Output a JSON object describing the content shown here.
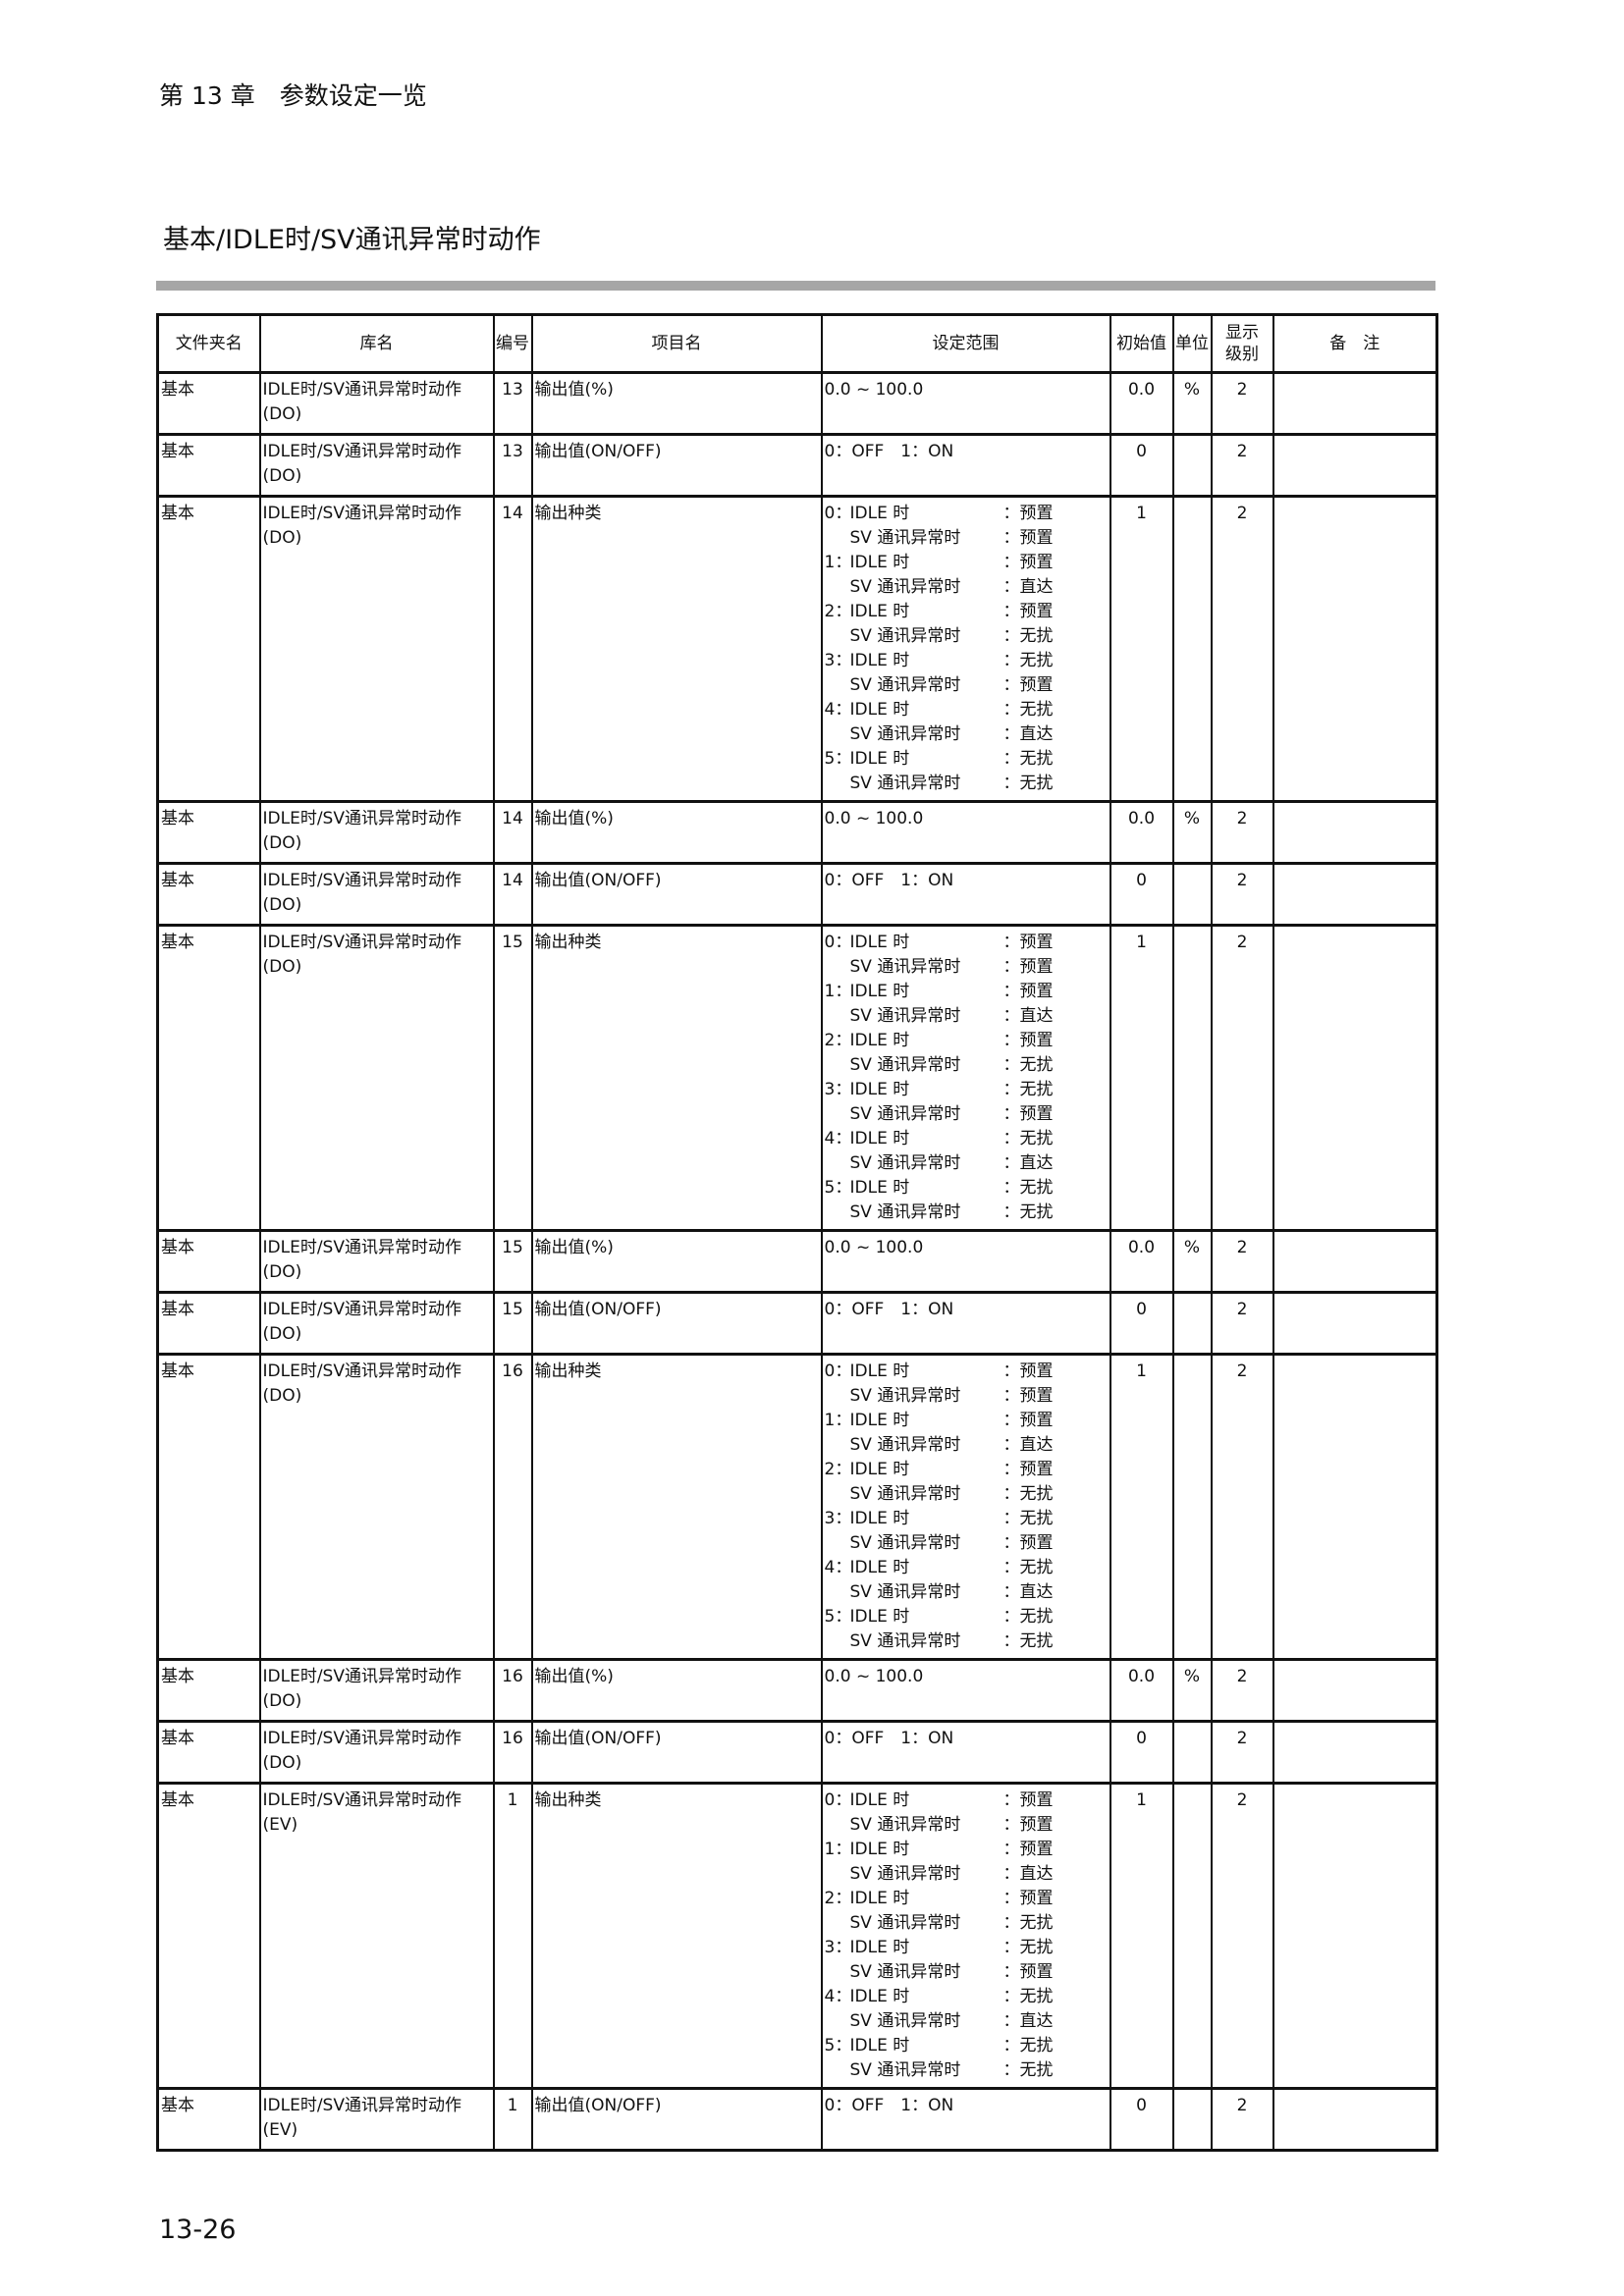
{
  "header": {
    "chapter": "第 13 章　参数设定一览"
  },
  "section_title": "基本/IDLE时/SV通讯异常时动作",
  "table": {
    "columns": [
      "文件夹名",
      "库名",
      "编号",
      "项目名",
      "设定范围",
      "初始值",
      "单位",
      "显示级别",
      "备　注"
    ],
    "mode_options": [
      {
        "no": "0：",
        "idle_label": "IDLE 时",
        "idle_value": "：预置",
        "sv_label": "SV 通讯异常时",
        "sv_value": "：预置"
      },
      {
        "no": "1：",
        "idle_label": "IDLE 时",
        "idle_value": "：预置",
        "sv_label": "SV 通讯异常时",
        "sv_value": "：直达"
      },
      {
        "no": "2：",
        "idle_label": "IDLE 时",
        "idle_value": "：预置",
        "sv_label": "SV 通讯异常时",
        "sv_value": "：无扰"
      },
      {
        "no": "3：",
        "idle_label": "IDLE 时",
        "idle_value": "：无扰",
        "sv_label": "SV 通讯异常时",
        "sv_value": "：预置"
      },
      {
        "no": "4：",
        "idle_label": "IDLE 时",
        "idle_value": "：无扰",
        "sv_label": "SV 通讯异常时",
        "sv_value": "：直达"
      },
      {
        "no": "5：",
        "idle_label": "IDLE 时",
        "idle_value": "：无扰",
        "sv_label": "SV 通讯异常时",
        "sv_value": "：无扰"
      }
    ],
    "rows": [
      {
        "folder": "基本",
        "library": "IDLE时/SV通讯异常时动作\n(DO)",
        "no": "13",
        "item": "输出值(%)",
        "range": "0.0 ~ 100.0",
        "init": "0.0",
        "unit": "%",
        "level": "2",
        "note": ""
      },
      {
        "folder": "基本",
        "library": "IDLE时/SV通讯异常时动作\n(DO)",
        "no": "13",
        "item": "输出值(ON/OFF)",
        "range": "0：OFF　1：ON",
        "init": "0",
        "unit": "",
        "level": "2",
        "note": ""
      },
      {
        "folder": "基本",
        "library": "IDLE时/SV通讯异常时动作\n(DO)",
        "no": "14",
        "item": "输出种类",
        "range_options": true,
        "init": "1",
        "unit": "",
        "level": "2",
        "note": ""
      },
      {
        "folder": "基本",
        "library": "IDLE时/SV通讯异常时动作\n(DO)",
        "no": "14",
        "item": "输出值(%)",
        "range": "0.0 ~ 100.0",
        "init": "0.0",
        "unit": "%",
        "level": "2",
        "note": ""
      },
      {
        "folder": "基本",
        "library": "IDLE时/SV通讯异常时动作\n(DO)",
        "no": "14",
        "item": "输出值(ON/OFF)",
        "range": "0：OFF　1：ON",
        "init": "0",
        "unit": "",
        "level": "2",
        "note": ""
      },
      {
        "folder": "基本",
        "library": "IDLE时/SV通讯异常时动作\n(DO)",
        "no": "15",
        "item": "输出种类",
        "range_options": true,
        "init": "1",
        "unit": "",
        "level": "2",
        "note": ""
      },
      {
        "folder": "基本",
        "library": "IDLE时/SV通讯异常时动作\n(DO)",
        "no": "15",
        "item": "输出值(%)",
        "range": "0.0 ~ 100.0",
        "init": "0.0",
        "unit": "%",
        "level": "2",
        "note": ""
      },
      {
        "folder": "基本",
        "library": "IDLE时/SV通讯异常时动作\n(DO)",
        "no": "15",
        "item": "输出值(ON/OFF)",
        "range": "0：OFF　1：ON",
        "init": "0",
        "unit": "",
        "level": "2",
        "note": ""
      },
      {
        "folder": "基本",
        "library": "IDLE时/SV通讯异常时动作\n(DO)",
        "no": "16",
        "item": "输出种类",
        "range_options": true,
        "init": "1",
        "unit": "",
        "level": "2",
        "note": ""
      },
      {
        "folder": "基本",
        "library": "IDLE时/SV通讯异常时动作\n(DO)",
        "no": "16",
        "item": "输出值(%)",
        "range": "0.0 ~ 100.0",
        "init": "0.0",
        "unit": "%",
        "level": "2",
        "note": ""
      },
      {
        "folder": "基本",
        "library": "IDLE时/SV通讯异常时动作\n(DO)",
        "no": "16",
        "item": "输出值(ON/OFF)",
        "range": "0：OFF　1：ON",
        "init": "0",
        "unit": "",
        "level": "2",
        "note": ""
      },
      {
        "folder": "基本",
        "library": "IDLE时/SV通讯异常时动作\n(EV)",
        "no": "1",
        "item": "输出种类",
        "range_options": true,
        "init": "1",
        "unit": "",
        "level": "2",
        "note": ""
      },
      {
        "folder": "基本",
        "library": "IDLE时/SV通讯异常时动作\n(EV)",
        "no": "1",
        "item": "输出值(ON/OFF)",
        "range": "0：OFF　1：ON",
        "init": "0",
        "unit": "",
        "level": "2",
        "note": ""
      }
    ]
  },
  "footer": {
    "page_number": "13-26"
  }
}
